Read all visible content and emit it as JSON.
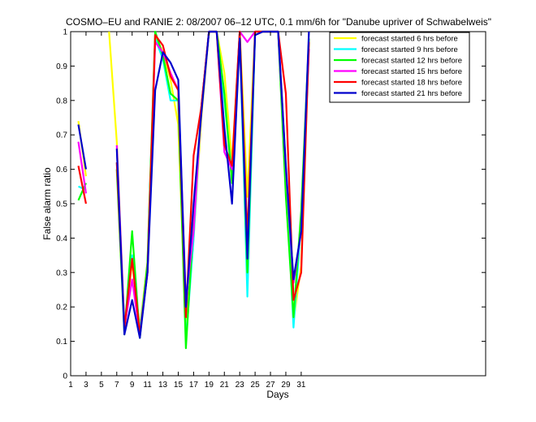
{
  "chart_data": {
    "type": "line",
    "title": "COSMO–EU and RANIE 2: 08/2007 06–12 UTC, 0.1 mm/6h for \"Danube upriver of Schwabelweis\"",
    "xlabel": "Days",
    "ylabel": "False alarm ratio",
    "xlim": [
      1,
      55
    ],
    "ylim": [
      0,
      1
    ],
    "xticks": [
      1,
      3,
      5,
      7,
      9,
      11,
      13,
      15,
      17,
      19,
      21,
      23,
      25,
      27,
      29,
      31
    ],
    "yticks": [
      0,
      0.1,
      0.2,
      0.3,
      0.4,
      0.5,
      0.6,
      0.7,
      0.8,
      0.9,
      1
    ],
    "ytick_labels": [
      "0",
      "0.1",
      "0.2",
      "0.3",
      "0.4",
      "0.5",
      "0.6",
      "0.7",
      "0.8",
      "0.9",
      "1"
    ],
    "grid": false,
    "legend_position": "top-right",
    "series": [
      {
        "name": "forecast started 6 hrs before",
        "color": "#ffff00",
        "values": [
          null,
          0.74,
          0.58,
          null,
          null,
          1.0,
          0.68,
          0.14,
          0.33,
          0.14,
          0.33,
          0.99,
          0.94,
          0.86,
          0.73,
          0.14,
          0.4,
          0.75,
          1.0,
          1.0,
          0.88,
          0.62,
          1.0,
          0.52,
          1.0,
          1.0,
          1.0,
          1.0,
          0.6,
          0.16,
          0.32,
          0.98
        ]
      },
      {
        "name": "forecast started 9 hrs before",
        "color": "#00ffff",
        "values": [
          null,
          0.55,
          0.54,
          null,
          null,
          null,
          0.62,
          0.15,
          0.35,
          0.13,
          0.32,
          0.98,
          0.92,
          0.8,
          0.8,
          0.1,
          0.4,
          0.78,
          1.0,
          1.0,
          0.8,
          0.58,
          1.0,
          0.23,
          1.0,
          1.0,
          1.0,
          1.0,
          0.6,
          0.14,
          0.45,
          0.98
        ]
      },
      {
        "name": "forecast started 12 hrs before",
        "color": "#00ff00",
        "values": [
          null,
          0.51,
          0.56,
          null,
          null,
          null,
          0.6,
          0.12,
          0.42,
          0.11,
          0.33,
          1.0,
          0.93,
          0.82,
          0.8,
          0.08,
          0.45,
          0.78,
          1.0,
          1.0,
          0.82,
          0.56,
          1.0,
          0.3,
          1.0,
          1.0,
          1.0,
          1.0,
          0.52,
          0.17,
          0.48,
          0.98
        ]
      },
      {
        "name": "forecast started 15 hrs before",
        "color": "#ff00ff",
        "values": [
          null,
          0.68,
          0.53,
          null,
          null,
          null,
          0.67,
          0.14,
          0.28,
          0.12,
          0.3,
          0.97,
          0.94,
          0.88,
          0.83,
          0.22,
          0.42,
          0.78,
          1.0,
          1.0,
          0.65,
          0.6,
          1.0,
          0.97,
          1.0,
          1.0,
          1.0,
          1.0,
          0.6,
          0.27,
          0.42,
          0.95
        ]
      },
      {
        "name": "forecast started 18 hrs before",
        "color": "#ff0000",
        "values": [
          null,
          0.61,
          0.5,
          null,
          null,
          null,
          0.62,
          0.14,
          0.34,
          0.12,
          0.3,
          0.99,
          0.96,
          0.87,
          0.83,
          0.17,
          0.64,
          0.78,
          1.0,
          1.0,
          0.67,
          0.61,
          1.0,
          0.4,
          1.0,
          1.0,
          1.0,
          1.0,
          0.82,
          0.22,
          0.3,
          0.97
        ]
      },
      {
        "name": "forecast started 21 hrs before",
        "color": "#0000cc",
        "values": [
          null,
          0.73,
          0.6,
          null,
          null,
          null,
          0.66,
          0.12,
          0.22,
          0.11,
          0.3,
          0.83,
          0.94,
          0.91,
          0.86,
          0.2,
          0.5,
          0.76,
          1.0,
          1.0,
          0.72,
          0.5,
          0.98,
          0.34,
          0.99,
          1.0,
          1.0,
          1.0,
          0.61,
          0.28,
          0.42,
          1.0
        ]
      }
    ]
  }
}
